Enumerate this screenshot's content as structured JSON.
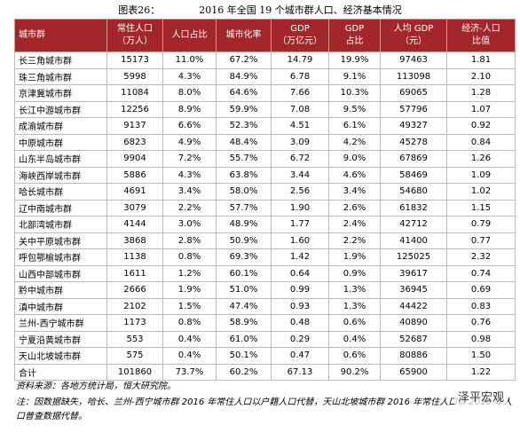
{
  "title": {
    "label": "图表26：",
    "text": "2016 年全国 19 个城市群人口、经济基本情况"
  },
  "table": {
    "header": [
      [
        "城市群"
      ],
      [
        "常住人口",
        "（万人）"
      ],
      [
        "人口占比"
      ],
      [
        "城市化率"
      ],
      [
        "GDP",
        "（万亿元）"
      ],
      [
        "GDP",
        "占比"
      ],
      [
        "人均 GDP",
        "（元）"
      ],
      [
        "经济-人口",
        "比值"
      ]
    ],
    "rows": [
      [
        "长三角城市群",
        "15173",
        "11.0%",
        "67.2%",
        "14.79",
        "19.9%",
        "97463",
        "1.81"
      ],
      [
        "珠三角城市群",
        "5998",
        "4.3%",
        "84.9%",
        "6.78",
        "9.1%",
        "113098",
        "2.10"
      ],
      [
        "京津冀城市群",
        "11084",
        "8.0%",
        "64.6%",
        "7.66",
        "10.3%",
        "69065",
        "1.28"
      ],
      [
        "长江中游城市群",
        "12256",
        "8.9%",
        "59.9%",
        "7.08",
        "9.5%",
        "57796",
        "1.07"
      ],
      [
        "成渝城市群",
        "9137",
        "6.6%",
        "52.3%",
        "4.51",
        "6.1%",
        "49327",
        "0.92"
      ],
      [
        "中原城市群",
        "6823",
        "4.9%",
        "48.4%",
        "3.09",
        "4.2%",
        "45278",
        "0.84"
      ],
      [
        "山东半岛城市群",
        "9904",
        "7.2%",
        "55.7%",
        "6.72",
        "9.0%",
        "67869",
        "1.26"
      ],
      [
        "海峡西岸城市群",
        "5886",
        "4.3%",
        "63.8%",
        "3.44",
        "4.6%",
        "58469",
        "1.09"
      ],
      [
        "哈长城市群",
        "4691",
        "3.4%",
        "58.0%",
        "2.56",
        "3.4%",
        "54680",
        "1.02"
      ],
      [
        "辽中南城市群",
        "3079",
        "2.2%",
        "57.7%",
        "1.90",
        "2.6%",
        "61832",
        "1.15"
      ],
      [
        "北部湾城市群",
        "4144",
        "3.0%",
        "48.9%",
        "1.77",
        "2.4%",
        "42712",
        "0.79"
      ],
      [
        "关中平原城市群",
        "3868",
        "2.8%",
        "50.9%",
        "1.60",
        "2.2%",
        "41400",
        "0.77"
      ],
      [
        "呼包鄂榆城市群",
        "1138",
        "0.8%",
        "69.3%",
        "1.42",
        "1.9%",
        "125025",
        "2.32"
      ],
      [
        "山西中部城市群",
        "1611",
        "1.2%",
        "60.1%",
        "0.64",
        "0.9%",
        "39617",
        "0.74"
      ],
      [
        "黔中城市群",
        "2666",
        "1.9%",
        "51.0%",
        "0.99",
        "1.3%",
        "36945",
        "0.69"
      ],
      [
        "滇中城市群",
        "2102",
        "1.5%",
        "47.4%",
        "0.93",
        "1.3%",
        "44422",
        "0.83"
      ],
      [
        "兰州-西宁城市群",
        "1173",
        "0.8%",
        "58.9%",
        "0.48",
        "0.6%",
        "40890",
        "0.76"
      ],
      [
        "宁夏沿黄城市群",
        "553",
        "0.4%",
        "61.0%",
        "0.29",
        "0.4%",
        "52687",
        "0.98"
      ],
      [
        "天山北坡城市群",
        "575",
        "0.4%",
        "50.1%",
        "0.47",
        "0.6%",
        "80886",
        "1.50"
      ],
      [
        "合计",
        "101860",
        "73.7%",
        "60.2%",
        "67.13",
        "90.2%",
        "65900",
        "1.22"
      ]
    ]
  },
  "footer": {
    "source": "资料来源：各地方统计局，恒大研究院。",
    "note": "注：因数据缺失，哈长、兰州-西宁城市群 2016 年常住人口以户籍人口代替，天山北坡城市群 2016 年常住人口以 2010 年人口普查数据代替。",
    "watermark": "泽平宏观"
  }
}
